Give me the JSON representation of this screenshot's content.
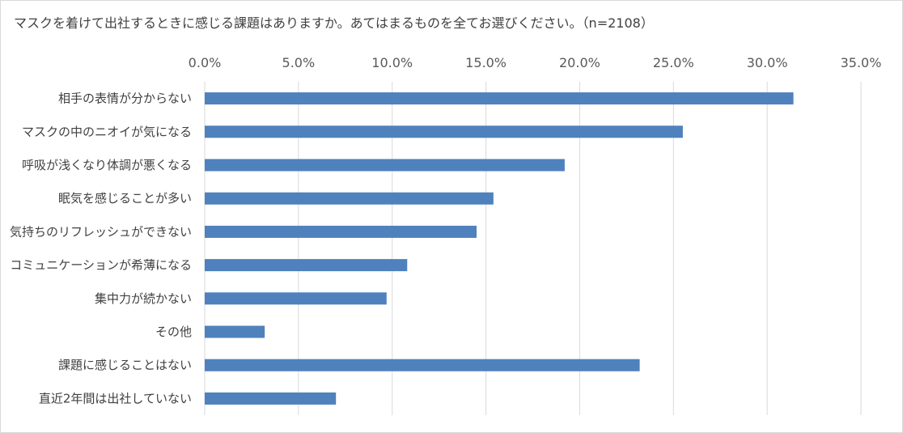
{
  "chart_data": {
    "type": "bar",
    "orientation": "horizontal",
    "title": "マスクを着けて出社するときに感じる課題はありますか。あてはまるものを全てお選びください。（n=2108）",
    "categories": [
      "相手の表情が分からない",
      "マスクの中のニオイが気になる",
      "呼吸が浅くなり体調が悪くなる",
      "眠気を感じることが多い",
      "気持ちのリフレッシュができない",
      "コミュニケーションが希薄になる",
      "集中力が続かない",
      "その他",
      "課題に感じることはない",
      "直近2年間は出社していない"
    ],
    "values": [
      31.4,
      25.5,
      19.2,
      15.4,
      14.5,
      10.8,
      9.7,
      3.2,
      23.2,
      7.0
    ],
    "xlim": [
      0,
      35
    ],
    "xticks": [
      "0.0%",
      "5.0%",
      "10.0%",
      "15.0%",
      "20.0%",
      "25.0%",
      "30.0%",
      "35.0%"
    ],
    "xtick_values": [
      0,
      5,
      10,
      15,
      20,
      25,
      30,
      35
    ],
    "grid": true,
    "legend": "none",
    "bar_color": "#4f81bd",
    "grid_color": "#d9d9d9"
  }
}
